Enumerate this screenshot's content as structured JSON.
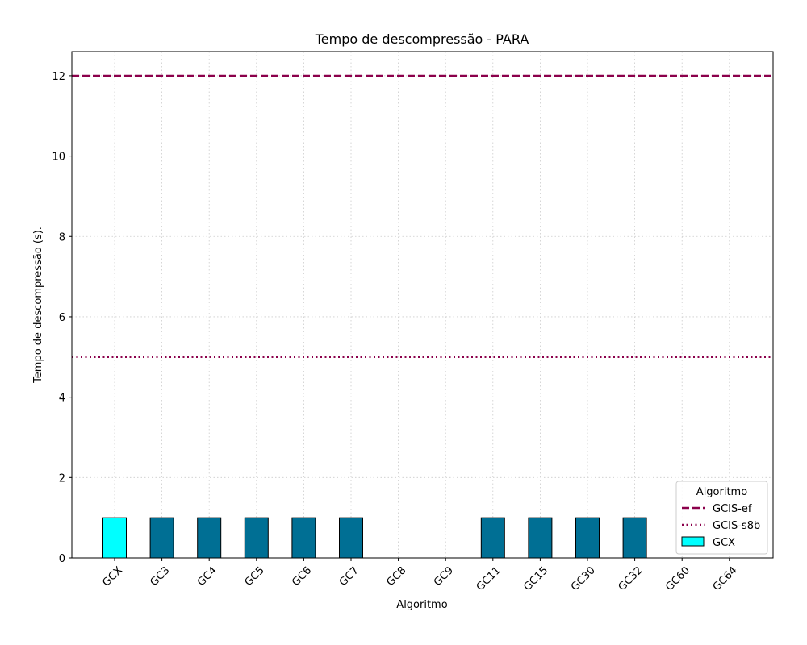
{
  "chart_data": {
    "type": "bar",
    "title": "Tempo de descompressão -  PARA",
    "xlabel": "Algoritmo",
    "ylabel": "Tempo de descompressão (s).",
    "categories": [
      "GCX",
      "GC3",
      "GC4",
      "GC5",
      "GC6",
      "GC7",
      "GC8",
      "GC9",
      "GC11",
      "GC15",
      "GC30",
      "GC32",
      "GC60",
      "GC64"
    ],
    "values": [
      1.0,
      1.0,
      1.0,
      1.0,
      1.0,
      1.0,
      0.0,
      0.0,
      1.0,
      1.0,
      1.0,
      1.0,
      0.0,
      0.0
    ],
    "bar_colors": [
      "#00ffff",
      "#006f94",
      "#006f94",
      "#006f94",
      "#006f94",
      "#006f94",
      "#006f94",
      "#006f94",
      "#006f94",
      "#006f94",
      "#006f94",
      "#006f94",
      "#006f94",
      "#006f94"
    ],
    "ylim": [
      0,
      12.6
    ],
    "yticks": [
      0,
      2,
      4,
      6,
      8,
      10,
      12
    ],
    "grid": true,
    "reference_lines": [
      {
        "name": "GCIS-ef",
        "value": 12.0,
        "style": "dashed",
        "color": "#8b004b"
      },
      {
        "name": "GCIS-s8b",
        "value": 5.0,
        "style": "dotted",
        "color": "#8b004b"
      }
    ],
    "legend": {
      "title": "Algoritmo",
      "placement": "lower-right",
      "entries": [
        {
          "label": "GCIS-ef",
          "kind": "dashed-line",
          "color": "#8b004b"
        },
        {
          "label": "GCIS-s8b",
          "kind": "dotted-line",
          "color": "#8b004b"
        },
        {
          "label": "GCX",
          "kind": "patch",
          "color": "#00ffff"
        }
      ]
    }
  }
}
